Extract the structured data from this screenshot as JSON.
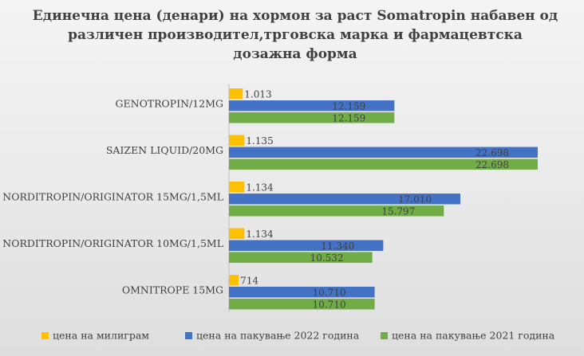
{
  "chart_data": {
    "type": "bar",
    "orientation": "horizontal",
    "title": "Единечна цена (денари) на хормон за раст Somatropin набавен од различен производител,трговска марка и фармацевтска дозажна форма",
    "categories": [
      "GENOTROPIN/12MG",
      "SAIZEN LIQUID/20MG",
      "NORDITROPIN/ORIGINATOR 15MG/1,5ML",
      "NORDITROPIN/ORIGINATOR 10MG/1,5ML",
      "OMNITROPE 15MG"
    ],
    "series": [
      {
        "name": "цена на милиграм",
        "color": "#ffc000",
        "values": [
          1013,
          1135,
          1134,
          1134,
          714
        ],
        "labels": [
          "1.013",
          "1.135",
          "1.134",
          "1.134",
          "714"
        ]
      },
      {
        "name": "цена на пакување 2022 година",
        "color": "#4472c4",
        "values": [
          12159,
          22698,
          17010,
          11340,
          10710
        ],
        "labels": [
          "12.159",
          "22.698",
          "17.010",
          "11.340",
          "10.710"
        ]
      },
      {
        "name": "цена на пакување 2021 година",
        "color": "#70ad47",
        "values": [
          12159,
          22698,
          15797,
          10532,
          10710
        ],
        "labels": [
          "12.159",
          "22.698",
          "15.797",
          "10.532",
          "10.710"
        ]
      }
    ],
    "xlim": [
      0,
      25000
    ],
    "grid": false,
    "legend_position": "bottom"
  }
}
